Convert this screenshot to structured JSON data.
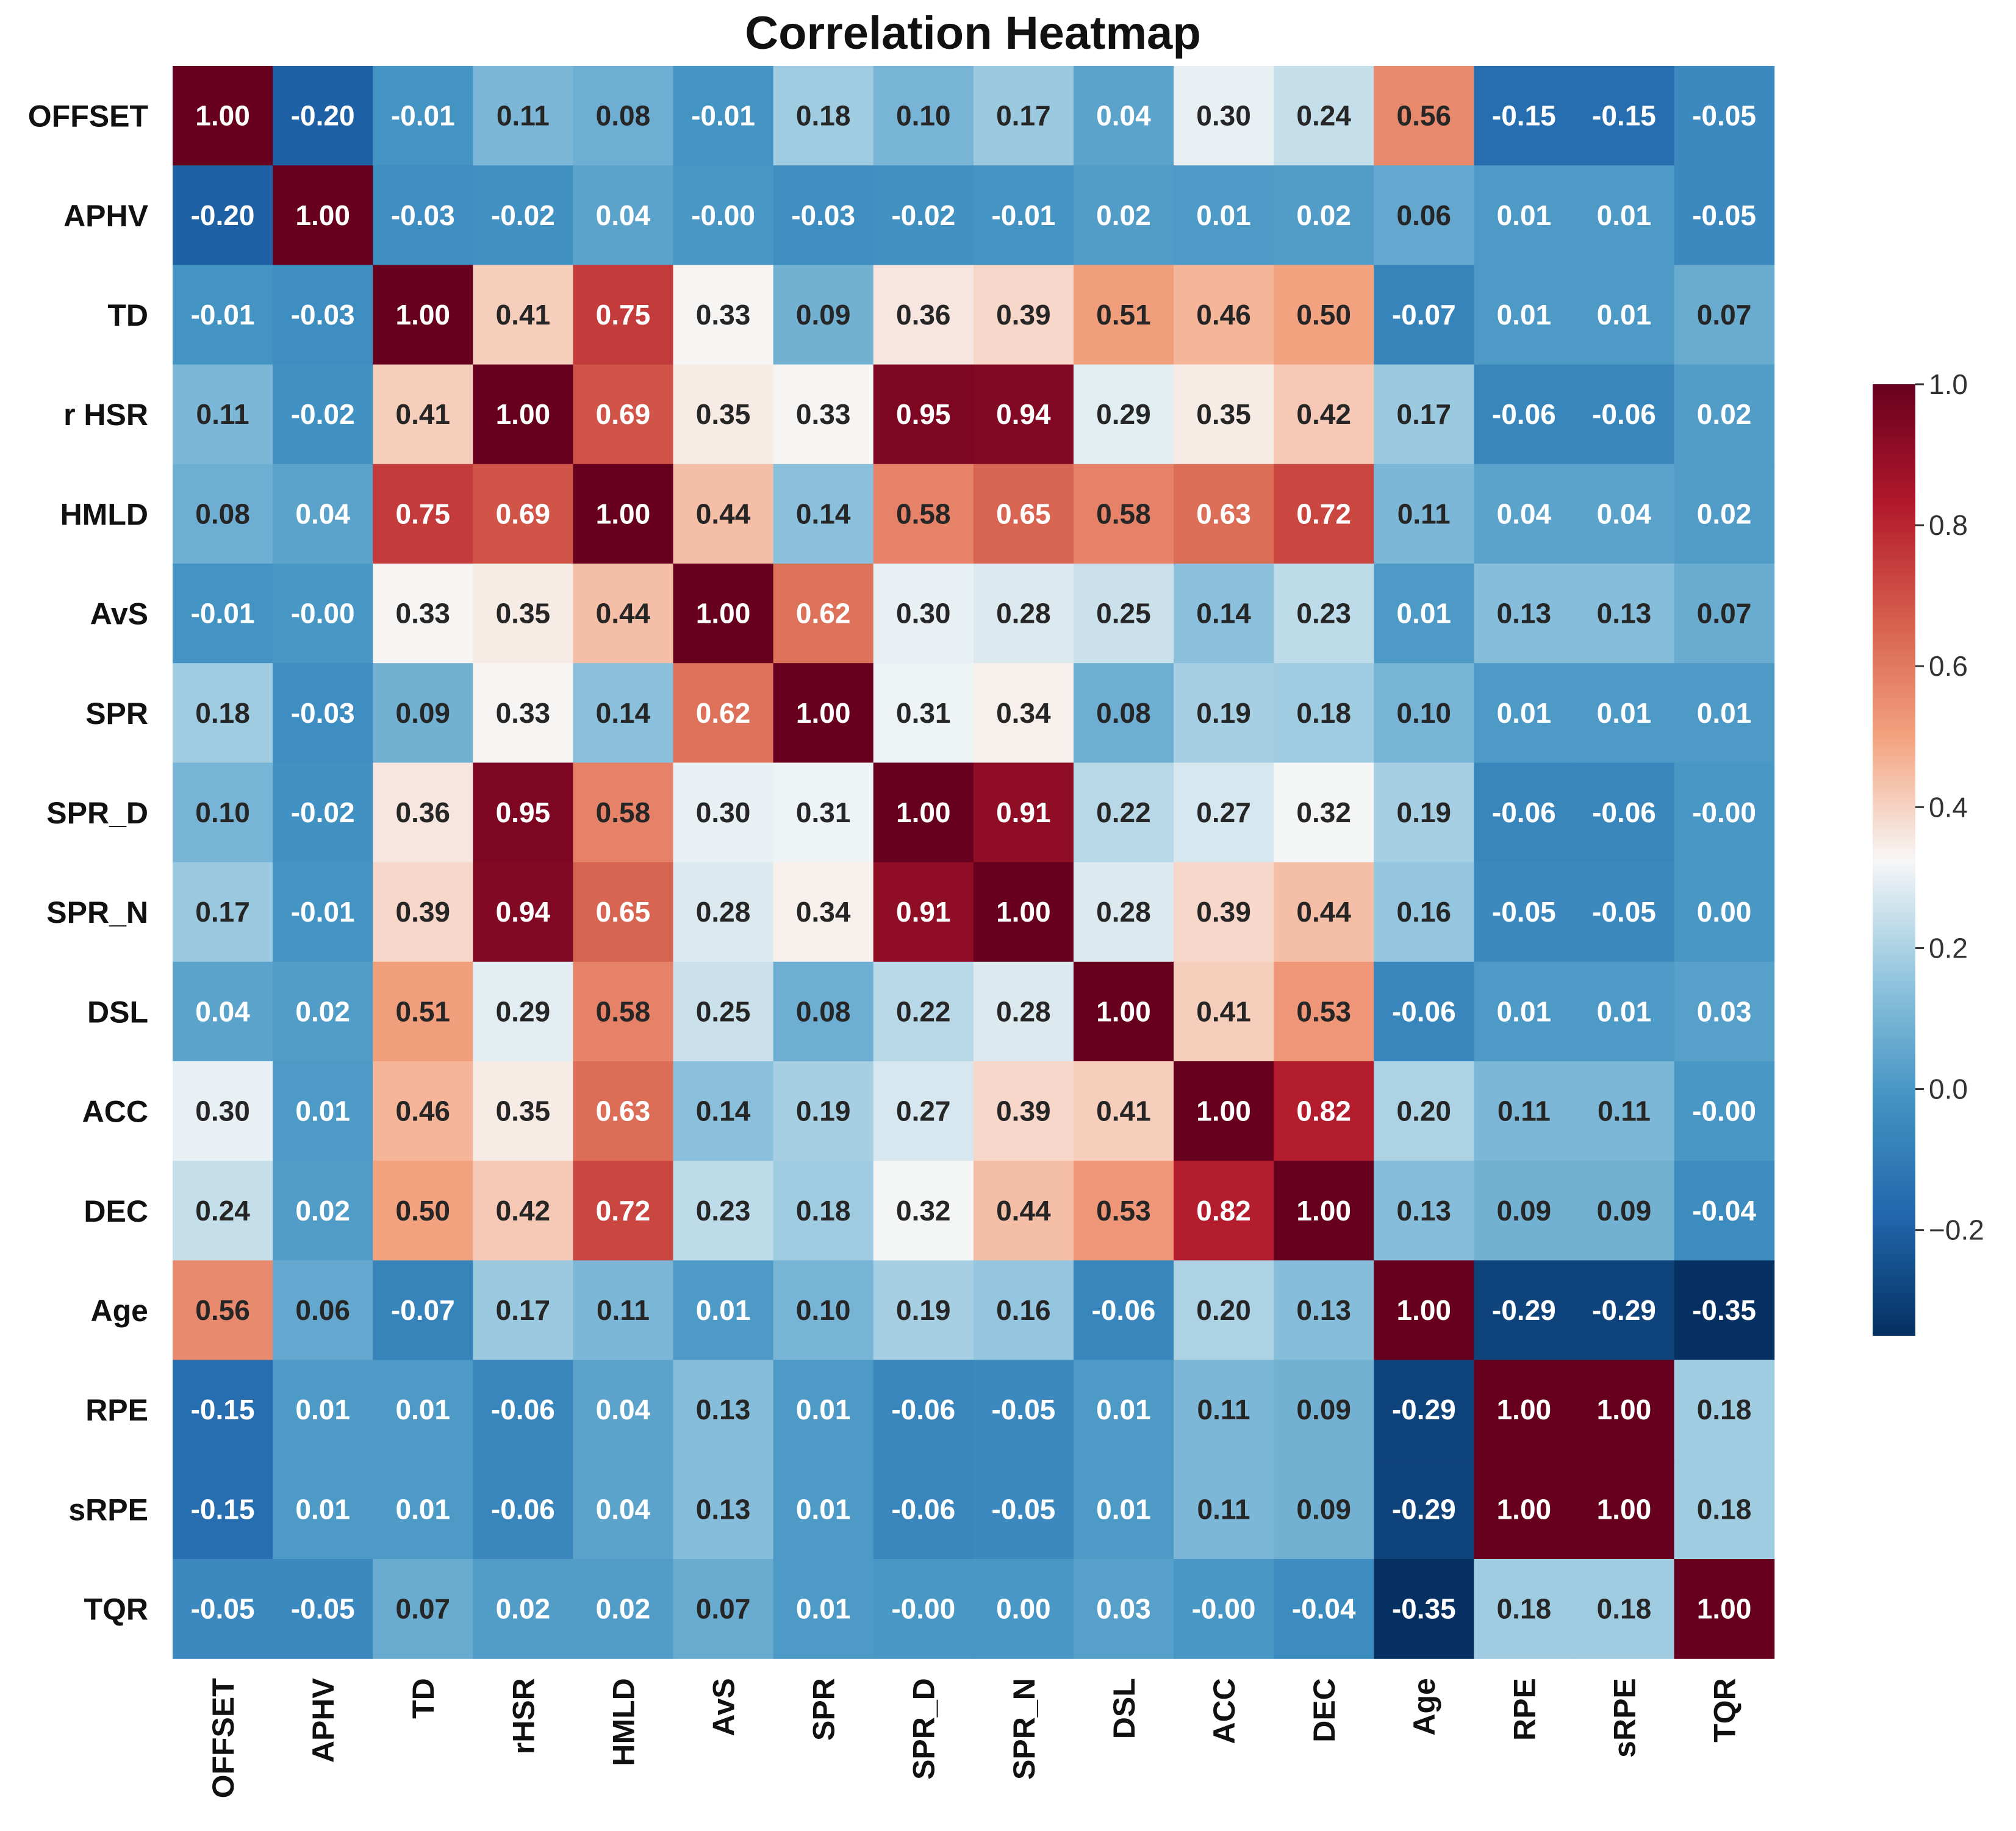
{
  "chart_data": {
    "type": "heatmap",
    "title": "Correlation Heatmap",
    "variables": [
      "OFFSET",
      "APHV",
      "TD",
      "rHSR",
      "HMLD",
      "AvS",
      "SPR",
      "SPR_D",
      "SPR_N",
      "DSL",
      "ACC",
      "DEC",
      "Age",
      "RPE",
      "sRPE",
      "TQR"
    ],
    "row_labels": [
      "OFFSET",
      "APHV",
      "TD",
      "r HSR",
      "HMLD",
      "AvS",
      "SPR",
      "SPR_D",
      "SPR_N",
      "DSL",
      "ACC",
      "DEC",
      "Age",
      "RPE",
      "sRPE",
      "TQR"
    ],
    "col_labels": [
      "OFFSET",
      "APHV",
      "TD",
      "rHSR",
      "HMLD",
      "AvS",
      "SPR",
      "SPR_D",
      "SPR_N",
      "DSL",
      "ACC",
      "DEC",
      "Age",
      "RPE",
      "sRPE",
      "TQR"
    ],
    "matrix": [
      [
        "1.00",
        "-0.20",
        "-0.01",
        "0.11",
        "0.08",
        "-0.01",
        "0.18",
        "0.10",
        "0.17",
        "0.04",
        "0.30",
        "0.24",
        "0.56",
        "-0.15",
        "-0.15",
        "-0.05"
      ],
      [
        "-0.20",
        "1.00",
        "-0.03",
        "-0.02",
        "0.04",
        "-0.00",
        "-0.03",
        "-0.02",
        "-0.01",
        "0.02",
        "0.01",
        "0.02",
        "0.06",
        "0.01",
        "0.01",
        "-0.05"
      ],
      [
        "-0.01",
        "-0.03",
        "1.00",
        "0.41",
        "0.75",
        "0.33",
        "0.09",
        "0.36",
        "0.39",
        "0.51",
        "0.46",
        "0.50",
        "-0.07",
        "0.01",
        "0.01",
        "0.07"
      ],
      [
        "0.11",
        "-0.02",
        "0.41",
        "1.00",
        "0.69",
        "0.35",
        "0.33",
        "0.95",
        "0.94",
        "0.29",
        "0.35",
        "0.42",
        "0.17",
        "-0.06",
        "-0.06",
        "0.02"
      ],
      [
        "0.08",
        "0.04",
        "0.75",
        "0.69",
        "1.00",
        "0.44",
        "0.14",
        "0.58",
        "0.65",
        "0.58",
        "0.63",
        "0.72",
        "0.11",
        "0.04",
        "0.04",
        "0.02"
      ],
      [
        "-0.01",
        "-0.00",
        "0.33",
        "0.35",
        "0.44",
        "1.00",
        "0.62",
        "0.30",
        "0.28",
        "0.25",
        "0.14",
        "0.23",
        "0.01",
        "0.13",
        "0.13",
        "0.07"
      ],
      [
        "0.18",
        "-0.03",
        "0.09",
        "0.33",
        "0.14",
        "0.62",
        "1.00",
        "0.31",
        "0.34",
        "0.08",
        "0.19",
        "0.18",
        "0.10",
        "0.01",
        "0.01",
        "0.01"
      ],
      [
        "0.10",
        "-0.02",
        "0.36",
        "0.95",
        "0.58",
        "0.30",
        "0.31",
        "1.00",
        "0.91",
        "0.22",
        "0.27",
        "0.32",
        "0.19",
        "-0.06",
        "-0.06",
        "-0.00"
      ],
      [
        "0.17",
        "-0.01",
        "0.39",
        "0.94",
        "0.65",
        "0.28",
        "0.34",
        "0.91",
        "1.00",
        "0.28",
        "0.39",
        "0.44",
        "0.16",
        "-0.05",
        "-0.05",
        "0.00"
      ],
      [
        "0.04",
        "0.02",
        "0.51",
        "0.29",
        "0.58",
        "0.25",
        "0.08",
        "0.22",
        "0.28",
        "1.00",
        "0.41",
        "0.53",
        "-0.06",
        "0.01",
        "0.01",
        "0.03"
      ],
      [
        "0.30",
        "0.01",
        "0.46",
        "0.35",
        "0.63",
        "0.14",
        "0.19",
        "0.27",
        "0.39",
        "0.41",
        "1.00",
        "0.82",
        "0.20",
        "0.11",
        "0.11",
        "-0.00"
      ],
      [
        "0.24",
        "0.02",
        "0.50",
        "0.42",
        "0.72",
        "0.23",
        "0.18",
        "0.32",
        "0.44",
        "0.53",
        "0.82",
        "1.00",
        "0.13",
        "0.09",
        "0.09",
        "-0.04"
      ],
      [
        "0.56",
        "0.06",
        "-0.07",
        "0.17",
        "0.11",
        "0.01",
        "0.10",
        "0.19",
        "0.16",
        "-0.06",
        "0.20",
        "0.13",
        "1.00",
        "-0.29",
        "-0.29",
        "-0.35"
      ],
      [
        "-0.15",
        "0.01",
        "0.01",
        "-0.06",
        "0.04",
        "0.13",
        "0.01",
        "-0.06",
        "-0.05",
        "0.01",
        "0.11",
        "0.09",
        "-0.29",
        "1.00",
        "1.00",
        "0.18"
      ],
      [
        "-0.15",
        "0.01",
        "0.01",
        "-0.06",
        "0.04",
        "0.13",
        "0.01",
        "-0.06",
        "-0.05",
        "0.01",
        "0.11",
        "0.09",
        "-0.29",
        "1.00",
        "1.00",
        "0.18"
      ],
      [
        "-0.05",
        "-0.05",
        "0.07",
        "0.02",
        "0.02",
        "0.07",
        "0.01",
        "-0.00",
        "0.00",
        "0.03",
        "-0.00",
        "-0.04",
        "-0.35",
        "0.18",
        "0.18",
        "1.00"
      ]
    ],
    "colormap": "RdBu_r",
    "vmin": -0.35,
    "vmax": 1.0,
    "colorbar": {
      "ticks": [
        1.0,
        0.8,
        0.6,
        0.4,
        0.2,
        0.0,
        -0.2
      ],
      "tick_labels": [
        "1.0",
        "0.8",
        "0.6",
        "0.4",
        "0.2",
        "0.0",
        "−0.2"
      ],
      "location": "right"
    }
  }
}
